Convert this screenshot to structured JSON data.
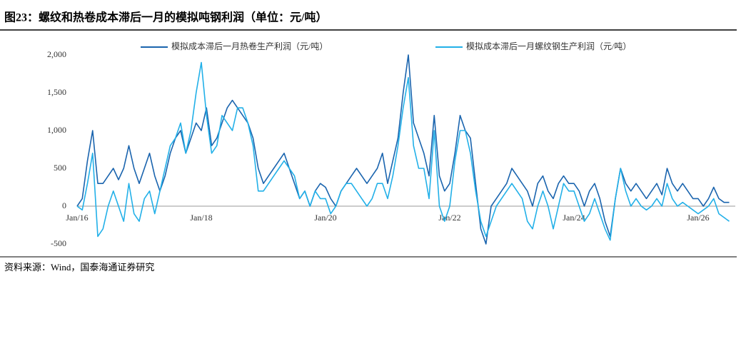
{
  "header": {
    "title": "图23：螺纹和热卷成本滞后一月的模拟吨钢利润（单位：元/吨）"
  },
  "source": "资料来源：Wind，国泰海通证券研究",
  "chart_data": {
    "type": "line",
    "categories": [
      "Jan/16",
      null,
      null,
      null,
      null,
      null,
      null,
      null,
      null,
      null,
      null,
      null,
      null,
      null,
      null,
      null,
      null,
      null,
      null,
      null,
      null,
      null,
      null,
      null,
      "Jan/18",
      null,
      null,
      null,
      null,
      null,
      null,
      null,
      null,
      null,
      null,
      null,
      null,
      null,
      null,
      null,
      null,
      null,
      null,
      null,
      null,
      null,
      null,
      null,
      "Jan/20",
      null,
      null,
      null,
      null,
      null,
      null,
      null,
      null,
      null,
      null,
      null,
      null,
      null,
      null,
      null,
      null,
      null,
      null,
      null,
      null,
      null,
      null,
      null,
      "Jan/22",
      null,
      null,
      null,
      null,
      null,
      null,
      null,
      null,
      null,
      null,
      null,
      null,
      null,
      null,
      null,
      null,
      null,
      null,
      null,
      null,
      null,
      null,
      null,
      "Jan/24",
      null,
      null,
      null,
      null,
      null,
      null,
      null,
      null,
      null,
      null,
      null,
      null,
      null,
      null,
      null,
      null,
      null,
      null,
      null,
      null,
      null,
      null,
      null,
      "Jan/26",
      null,
      null,
      null,
      null,
      null,
      null
    ],
    "series": [
      {
        "name": "模拟成本滞后一月热卷生产利润（元/吨）",
        "color": "#1a64ae",
        "values": [
          0,
          100,
          600,
          1000,
          300,
          300,
          400,
          500,
          350,
          500,
          800,
          500,
          300,
          500,
          700,
          400,
          200,
          400,
          700,
          900,
          1000,
          700,
          900,
          1100,
          1000,
          1300,
          800,
          900,
          1100,
          1300,
          1400,
          1300,
          1200,
          1100,
          900,
          500,
          300,
          400,
          500,
          600,
          700,
          500,
          300,
          100,
          200,
          0,
          200,
          300,
          250,
          100,
          0,
          200,
          300,
          400,
          500,
          400,
          300,
          400,
          500,
          700,
          300,
          600,
          900,
          1500,
          2000,
          1100,
          900,
          700,
          400,
          1200,
          400,
          200,
          300,
          700,
          1200,
          1000,
          900,
          300,
          -300,
          -500,
          0,
          100,
          200,
          300,
          500,
          400,
          300,
          200,
          0,
          300,
          400,
          200,
          100,
          300,
          400,
          300,
          300,
          200,
          0,
          200,
          300,
          100,
          -200,
          -400,
          100,
          500,
          300,
          200,
          300,
          200,
          100,
          200,
          300,
          150,
          500,
          300,
          200,
          300,
          200,
          100,
          100,
          0,
          100,
          250,
          100,
          50,
          50
        ]
      },
      {
        "name": "模拟成本滞后一月螺纹钢生产利润（元/吨）",
        "color": "#22b0e8",
        "values": [
          0,
          -50,
          300,
          700,
          -400,
          -300,
          0,
          200,
          0,
          -200,
          300,
          -100,
          -200,
          100,
          200,
          -100,
          200,
          500,
          800,
          900,
          1100,
          700,
          1000,
          1500,
          1900,
          1200,
          700,
          800,
          1200,
          1100,
          1000,
          1300,
          1300,
          1100,
          800,
          200,
          200,
          300,
          400,
          500,
          600,
          500,
          400,
          100,
          200,
          0,
          200,
          100,
          100,
          -100,
          0,
          200,
          300,
          300,
          200,
          100,
          0,
          100,
          300,
          300,
          100,
          400,
          800,
          1300,
          1700,
          800,
          500,
          500,
          100,
          1000,
          0,
          -200,
          0,
          600,
          1000,
          1000,
          700,
          200,
          -200,
          -400,
          -200,
          0,
          100,
          200,
          300,
          200,
          100,
          -200,
          -300,
          0,
          200,
          0,
          -300,
          0,
          300,
          200,
          200,
          0,
          -200,
          -100,
          100,
          -100,
          -300,
          -450,
          100,
          500,
          200,
          0,
          100,
          0,
          -50,
          0,
          100,
          0,
          300,
          100,
          0,
          50,
          0,
          -50,
          -100,
          -50,
          0,
          100,
          -100,
          -150,
          -200
        ]
      }
    ],
    "ylim": [
      -500,
      2000
    ],
    "yticks": [
      {
        "value": 2000,
        "label": "2,000"
      },
      {
        "value": 1500,
        "label": "1,500"
      },
      {
        "value": 1000,
        "label": "1,000"
      },
      500,
      0,
      -500
    ]
  }
}
